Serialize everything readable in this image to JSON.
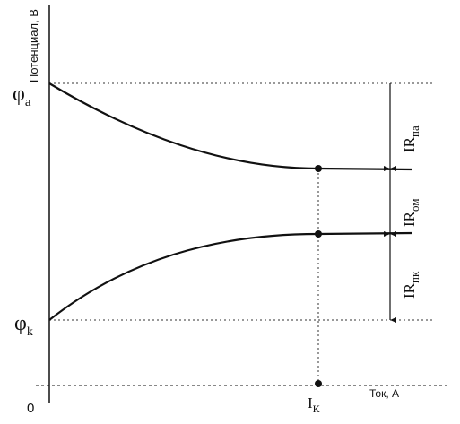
{
  "axes": {
    "y_label": "Потенциал, В",
    "x_label": "Ток, А",
    "origin": "0"
  },
  "levels": {
    "phi_a": {
      "main": "φ",
      "sub": "a"
    },
    "phi_k": {
      "main": "φ",
      "sub": "k"
    }
  },
  "current": {
    "main": "I",
    "sub": "К"
  },
  "drops": [
    {
      "main": "IR",
      "sub": "па"
    },
    {
      "main": "IR",
      "sub": "ом"
    },
    {
      "main": "IR",
      "sub": "пк"
    }
  ]
}
